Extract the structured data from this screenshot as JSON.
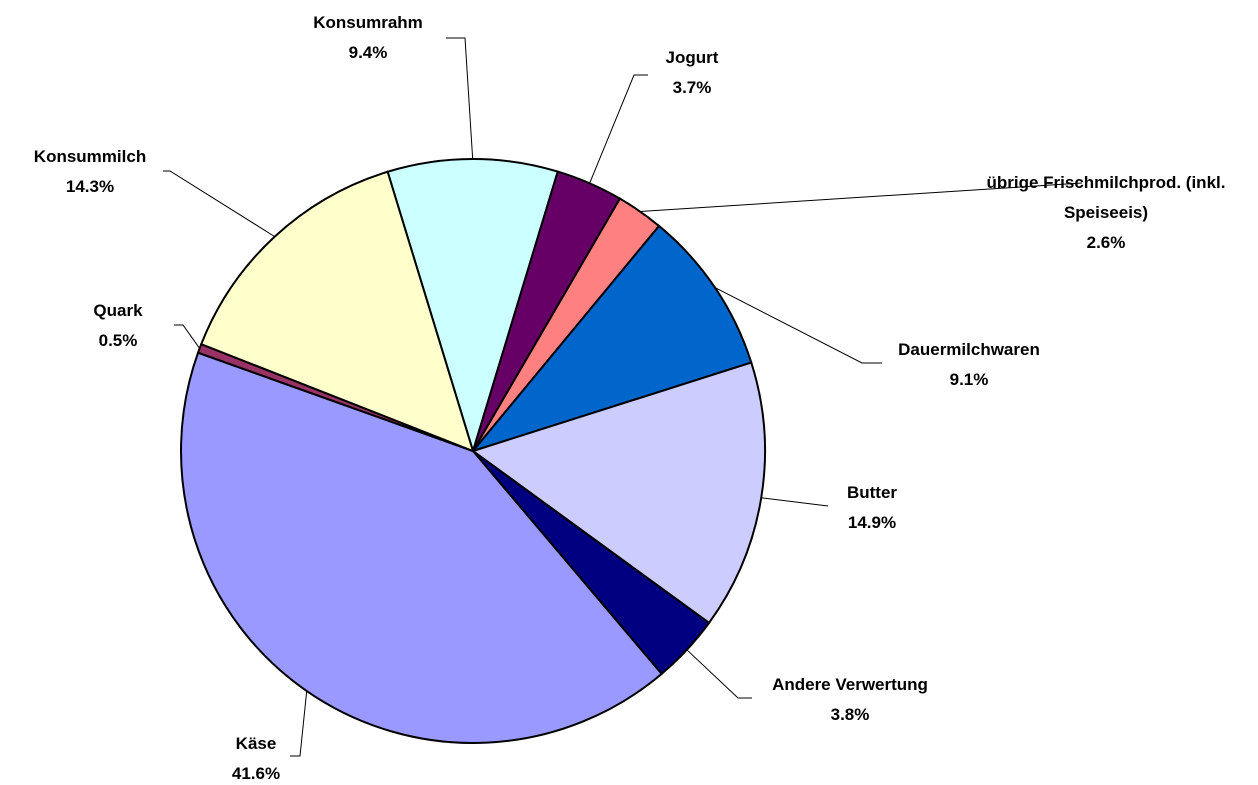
{
  "chart_data": {
    "type": "pie",
    "categories": [
      "Konsumrahm",
      "Jogurt",
      "übrige Frischmilchprod. (inkl. Speiseeis)",
      "Dauermilchwaren",
      "Butter",
      "Andere Verwertung",
      "Käse",
      "Quark",
      "Konsummilch"
    ],
    "values": [
      9.4,
      3.7,
      2.6,
      9.1,
      14.9,
      3.8,
      41.6,
      0.5,
      14.3
    ],
    "value_labels": [
      "9.4%",
      "3.7%",
      "2.6%",
      "9.1%",
      "14.9%",
      "3.8%",
      "41.6%",
      "0.5%",
      "14.3%"
    ],
    "colors": [
      "#ccffff",
      "#660066",
      "#ff8080",
      "#0066cc",
      "#ccccff",
      "#000080",
      "#9999ff",
      "#993366",
      "#ffffcc"
    ]
  }
}
